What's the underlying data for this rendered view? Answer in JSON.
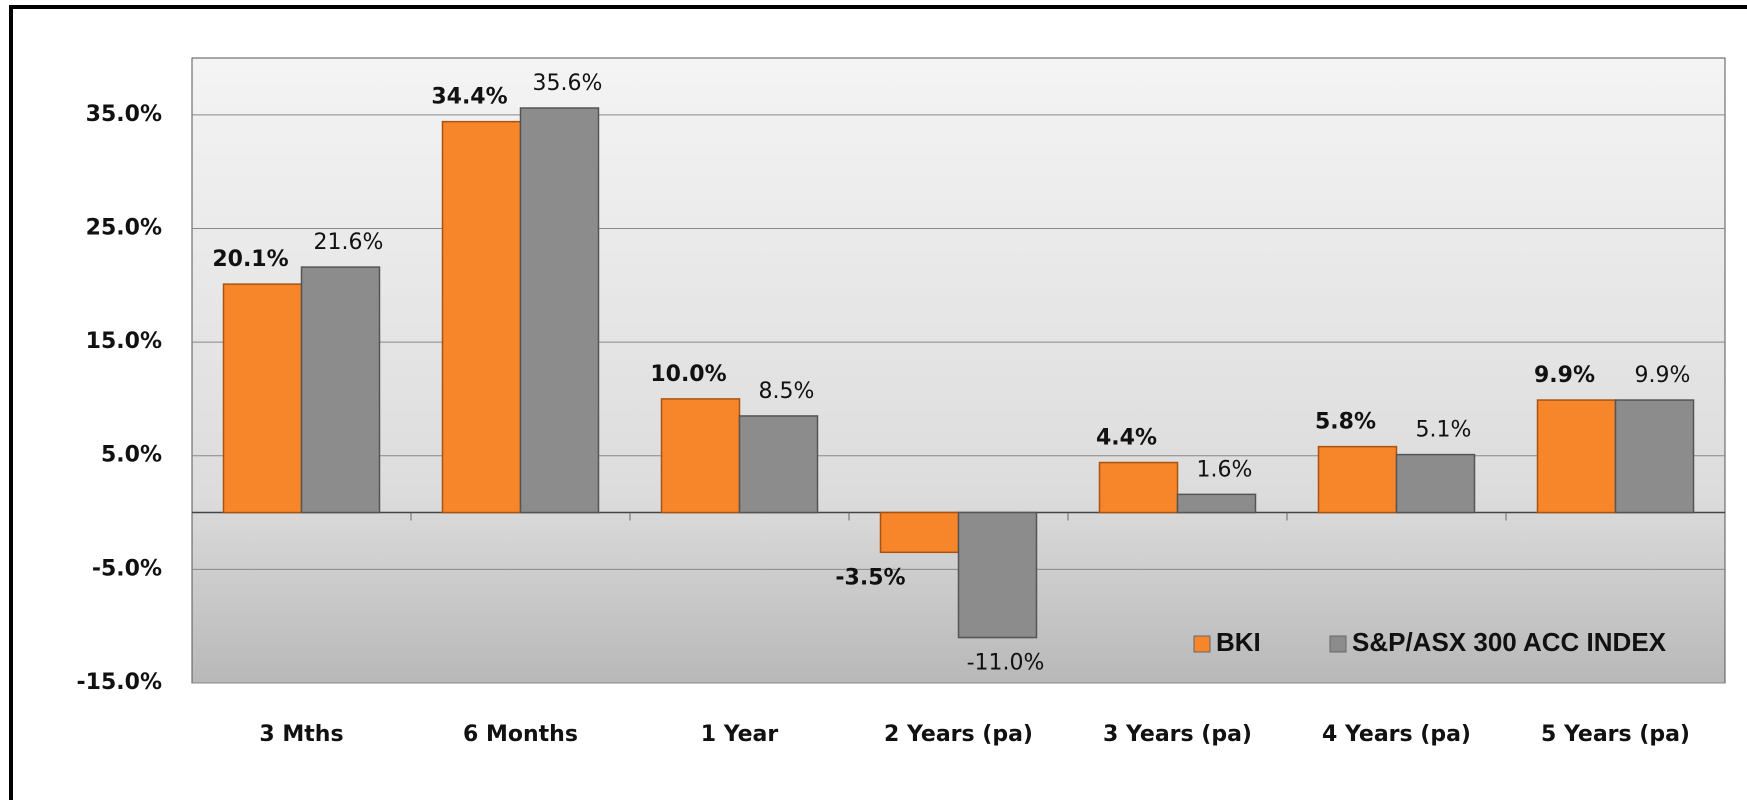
{
  "chart_data": {
    "type": "bar",
    "categories": [
      "3 Mths",
      "6 Months",
      "1 Year",
      "2 Years (pa)",
      "3 Years (pa)",
      "4 Years (pa)",
      "5 Years (pa)"
    ],
    "series": [
      {
        "name": "BKI",
        "color": "#f7862a",
        "values": [
          20.1,
          34.4,
          10.0,
          -3.5,
          4.4,
          5.8,
          9.9
        ],
        "value_labels": [
          "20.1%",
          "34.4%",
          "10.0%",
          "-3.5%",
          "4.4%",
          "5.8%",
          "9.9%"
        ]
      },
      {
        "name": "S&P/ASX 300 ACC INDEX",
        "color": "#8c8c8c",
        "values": [
          21.6,
          35.6,
          8.5,
          -11.0,
          1.6,
          5.1,
          9.9
        ],
        "value_labels": [
          "21.6%",
          "35.6%",
          "8.5%",
          "-11.0%",
          "1.6%",
          "5.1%",
          "9.9%"
        ]
      }
    ],
    "ylim": [
      -15,
      40
    ],
    "yticks": [
      {
        "value": -15,
        "label": "-15.0%"
      },
      {
        "value": -5,
        "label": "-5.0%"
      },
      {
        "value": 5,
        "label": "5.0%"
      },
      {
        "value": 15,
        "label": "15.0%"
      },
      {
        "value": 25,
        "label": "25.0%"
      },
      {
        "value": 35,
        "label": "35.0%"
      }
    ],
    "grid": true,
    "legend": "lower right"
  }
}
